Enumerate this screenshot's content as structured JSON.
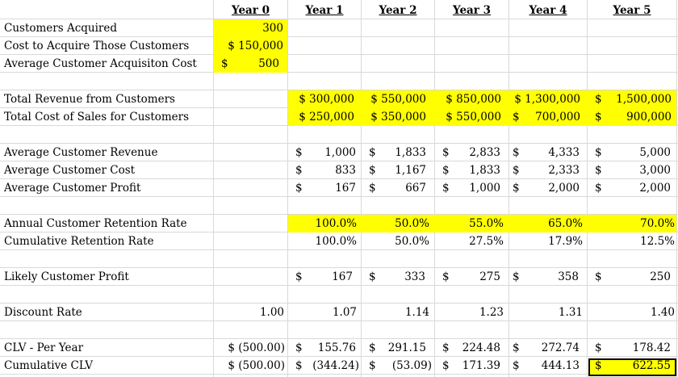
{
  "headers": [
    "Year 0",
    "Year 1",
    "Year 2",
    "Year 3",
    "Year 4",
    "Year 5"
  ],
  "labels": {
    "customers_acquired": "Customers Acquired",
    "cost_to_acquire": "Cost to Acquire Those Customers",
    "avg_acq_cost": "Average Customer Acquisiton Cost",
    "total_revenue": "Total Revenue from Customers",
    "total_cost_sales": "Total Cost of Sales for Customers",
    "avg_revenue": "Average Customer Revenue",
    "avg_cost": "Average Customer Cost",
    "avg_profit": "Average Customer Profit",
    "annual_retention": "Annual Customer Retention Rate",
    "cumulative_retention": "Cumulative Retention Rate",
    "likely_profit": "Likely Customer Profit",
    "discount_rate": "Discount Rate",
    "clv_per_year": "CLV - Per Year",
    "cumulative_clv": "Cumulative CLV"
  },
  "year0": {
    "customers_acquired": "300",
    "cost_to_acquire": "$ 150,000",
    "avg_acq_cost_symbol": "$",
    "avg_acq_cost": "500"
  },
  "currency_symbol": "$",
  "total_revenue": [
    "$ 300,000",
    "$ 550,000",
    "$ 850,000",
    "$ 1,300,000",
    "1,500,000"
  ],
  "total_cost_sales": [
    "$ 250,000",
    "$ 350,000",
    "$ 550,000",
    "700,000",
    "900,000"
  ],
  "avg_revenue": [
    "1,000",
    "1,833",
    "2,833",
    "4,333",
    "5,000"
  ],
  "avg_cost": [
    "833",
    "1,167",
    "1,833",
    "2,333",
    "3,000"
  ],
  "avg_profit": [
    "167",
    "667",
    "1,000",
    "2,000",
    "2,000"
  ],
  "annual_retention": [
    "100.0%",
    "50.0%",
    "55.0%",
    "65.0%",
    "70.0%"
  ],
  "cumulative_retention": [
    "100.0%",
    "50.0%",
    "27.5%",
    "17.9%",
    "12.5%"
  ],
  "likely_profit": [
    "167",
    "333",
    "275",
    "358",
    "250"
  ],
  "discount_rate": [
    "1.00",
    "1.07",
    "1.14",
    "1.23",
    "1.31",
    "1.40"
  ],
  "clv_per_year": [
    "$ (500.00)",
    "155.76",
    "291.15",
    "224.48",
    "272.74",
    "178.42"
  ],
  "cumulative_clv": [
    "$ (500.00)",
    "(344.24)",
    "(53.09)",
    "171.39",
    "444.13",
    "622.55"
  ]
}
